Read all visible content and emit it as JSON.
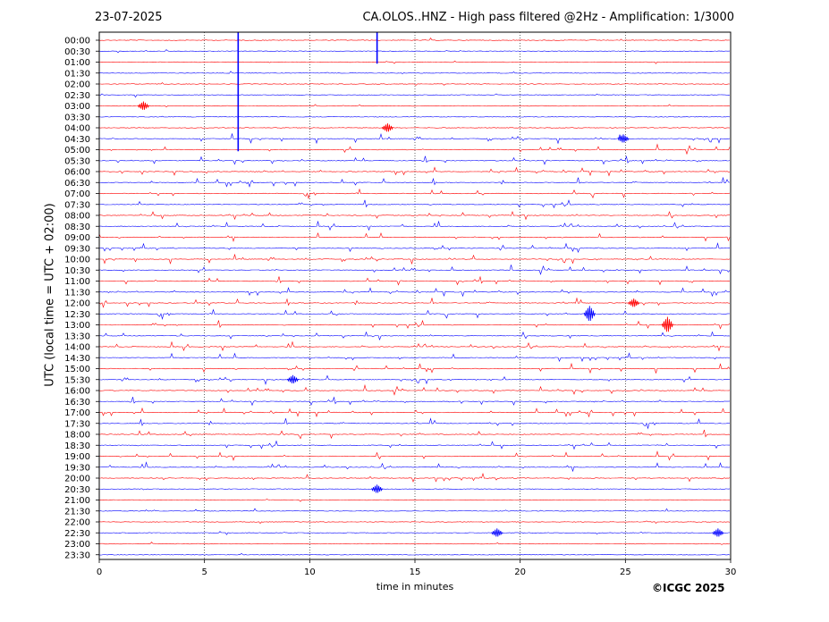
{
  "header": {
    "date": "23-07-2025",
    "title": "CA.OLOS..HNZ - High pass filtered @2Hz - Amplification: 1/3000"
  },
  "footer": {
    "copyright": "©ICGC 2025"
  },
  "colors": {
    "red_trace": "#ff0000",
    "blue_trace": "#0000ff",
    "axis": "#000000",
    "gridline": "#000000"
  },
  "chart_data": {
    "type": "line",
    "title": "CA.OLOS..HNZ - High pass filtered @2Hz - Amplification: 1/3000",
    "xlabel": "time in minutes",
    "ylabel": "UTC (local time = UTC + 02:00)",
    "xlim": [
      0,
      30
    ],
    "x_ticks": [
      0,
      5,
      10,
      15,
      20,
      25,
      30
    ],
    "vertical_grid": [
      5,
      10,
      15,
      20,
      25
    ],
    "grid": "dotted vertical lines at 5-minute intervals",
    "trace_colors_alternate": [
      "red",
      "blue"
    ],
    "rows": [
      {
        "label": "00:00",
        "color": "red"
      },
      {
        "label": "00:30",
        "color": "blue"
      },
      {
        "label": "01:00",
        "color": "red"
      },
      {
        "label": "01:30",
        "color": "blue"
      },
      {
        "label": "02:00",
        "color": "red"
      },
      {
        "label": "02:30",
        "color": "blue"
      },
      {
        "label": "03:00",
        "color": "red"
      },
      {
        "label": "03:30",
        "color": "blue"
      },
      {
        "label": "04:00",
        "color": "red"
      },
      {
        "label": "04:30",
        "color": "blue"
      },
      {
        "label": "05:00",
        "color": "red"
      },
      {
        "label": "05:30",
        "color": "blue"
      },
      {
        "label": "06:00",
        "color": "red"
      },
      {
        "label": "06:30",
        "color": "blue"
      },
      {
        "label": "07:00",
        "color": "red"
      },
      {
        "label": "07:30",
        "color": "blue"
      },
      {
        "label": "08:00",
        "color": "red"
      },
      {
        "label": "08:30",
        "color": "blue"
      },
      {
        "label": "09:00",
        "color": "red"
      },
      {
        "label": "09:30",
        "color": "blue"
      },
      {
        "label": "10:00",
        "color": "red"
      },
      {
        "label": "10:30",
        "color": "blue"
      },
      {
        "label": "11:00",
        "color": "red"
      },
      {
        "label": "11:30",
        "color": "blue"
      },
      {
        "label": "12:00",
        "color": "red"
      },
      {
        "label": "12:30",
        "color": "blue"
      },
      {
        "label": "13:00",
        "color": "red"
      },
      {
        "label": "13:30",
        "color": "blue"
      },
      {
        "label": "14:00",
        "color": "red"
      },
      {
        "label": "14:30",
        "color": "blue"
      },
      {
        "label": "15:00",
        "color": "red"
      },
      {
        "label": "15:30",
        "color": "blue"
      },
      {
        "label": "16:00",
        "color": "red"
      },
      {
        "label": "16:30",
        "color": "blue"
      },
      {
        "label": "17:00",
        "color": "red"
      },
      {
        "label": "17:30",
        "color": "blue"
      },
      {
        "label": "18:00",
        "color": "red"
      },
      {
        "label": "18:30",
        "color": "blue"
      },
      {
        "label": "19:00",
        "color": "red"
      },
      {
        "label": "19:30",
        "color": "blue"
      },
      {
        "label": "20:00",
        "color": "red"
      },
      {
        "label": "20:30",
        "color": "blue"
      },
      {
        "label": "21:00",
        "color": "red"
      },
      {
        "label": "21:30",
        "color": "blue"
      },
      {
        "label": "22:00",
        "color": "red"
      },
      {
        "label": "22:30",
        "color": "blue"
      },
      {
        "label": "23:00",
        "color": "red"
      },
      {
        "label": "23:30",
        "color": "blue"
      }
    ],
    "events": [
      {
        "row": "00:30",
        "minute": 6.6,
        "amplitude": "very large"
      },
      {
        "row": "00:30",
        "minute": 13.2,
        "amplitude": "very large"
      },
      {
        "row": "03:00",
        "minute": 2.1,
        "amplitude": "small"
      },
      {
        "row": "04:00",
        "minute": 13.7,
        "amplitude": "small"
      },
      {
        "row": "04:30",
        "minute": 24.9,
        "amplitude": "small"
      },
      {
        "row": "12:00",
        "minute": 25.4,
        "amplitude": "small"
      },
      {
        "row": "12:30",
        "minute": 23.3,
        "amplitude": "medium"
      },
      {
        "row": "13:00",
        "minute": 27.0,
        "amplitude": "medium"
      },
      {
        "row": "15:30",
        "minute": 9.2,
        "amplitude": "small"
      },
      {
        "row": "20:30",
        "minute": 13.2,
        "amplitude": "small"
      },
      {
        "row": "22:30",
        "minute": 18.9,
        "amplitude": "small"
      },
      {
        "row": "22:30",
        "minute": 29.4,
        "amplitude": "small"
      }
    ],
    "activity_level": {
      "quiet_rows": [
        "00:00",
        "00:30",
        "01:00",
        "01:30",
        "02:00",
        "02:30",
        "03:00",
        "03:30",
        "04:00",
        "20:30",
        "21:00",
        "21:30",
        "22:00",
        "22:30",
        "23:00",
        "23:30"
      ],
      "busy_rows": [
        "05:00",
        "05:30",
        "06:00",
        "06:30",
        "07:00",
        "07:30",
        "08:00",
        "08:30",
        "09:00",
        "09:30",
        "10:00",
        "10:30",
        "11:00",
        "11:30",
        "12:00",
        "12:30",
        "13:00",
        "13:30",
        "14:00",
        "14:30",
        "15:00",
        "15:30",
        "16:00",
        "16:30",
        "17:00",
        "17:30",
        "18:00",
        "18:30",
        "19:00",
        "19:30",
        "20:00"
      ]
    }
  }
}
